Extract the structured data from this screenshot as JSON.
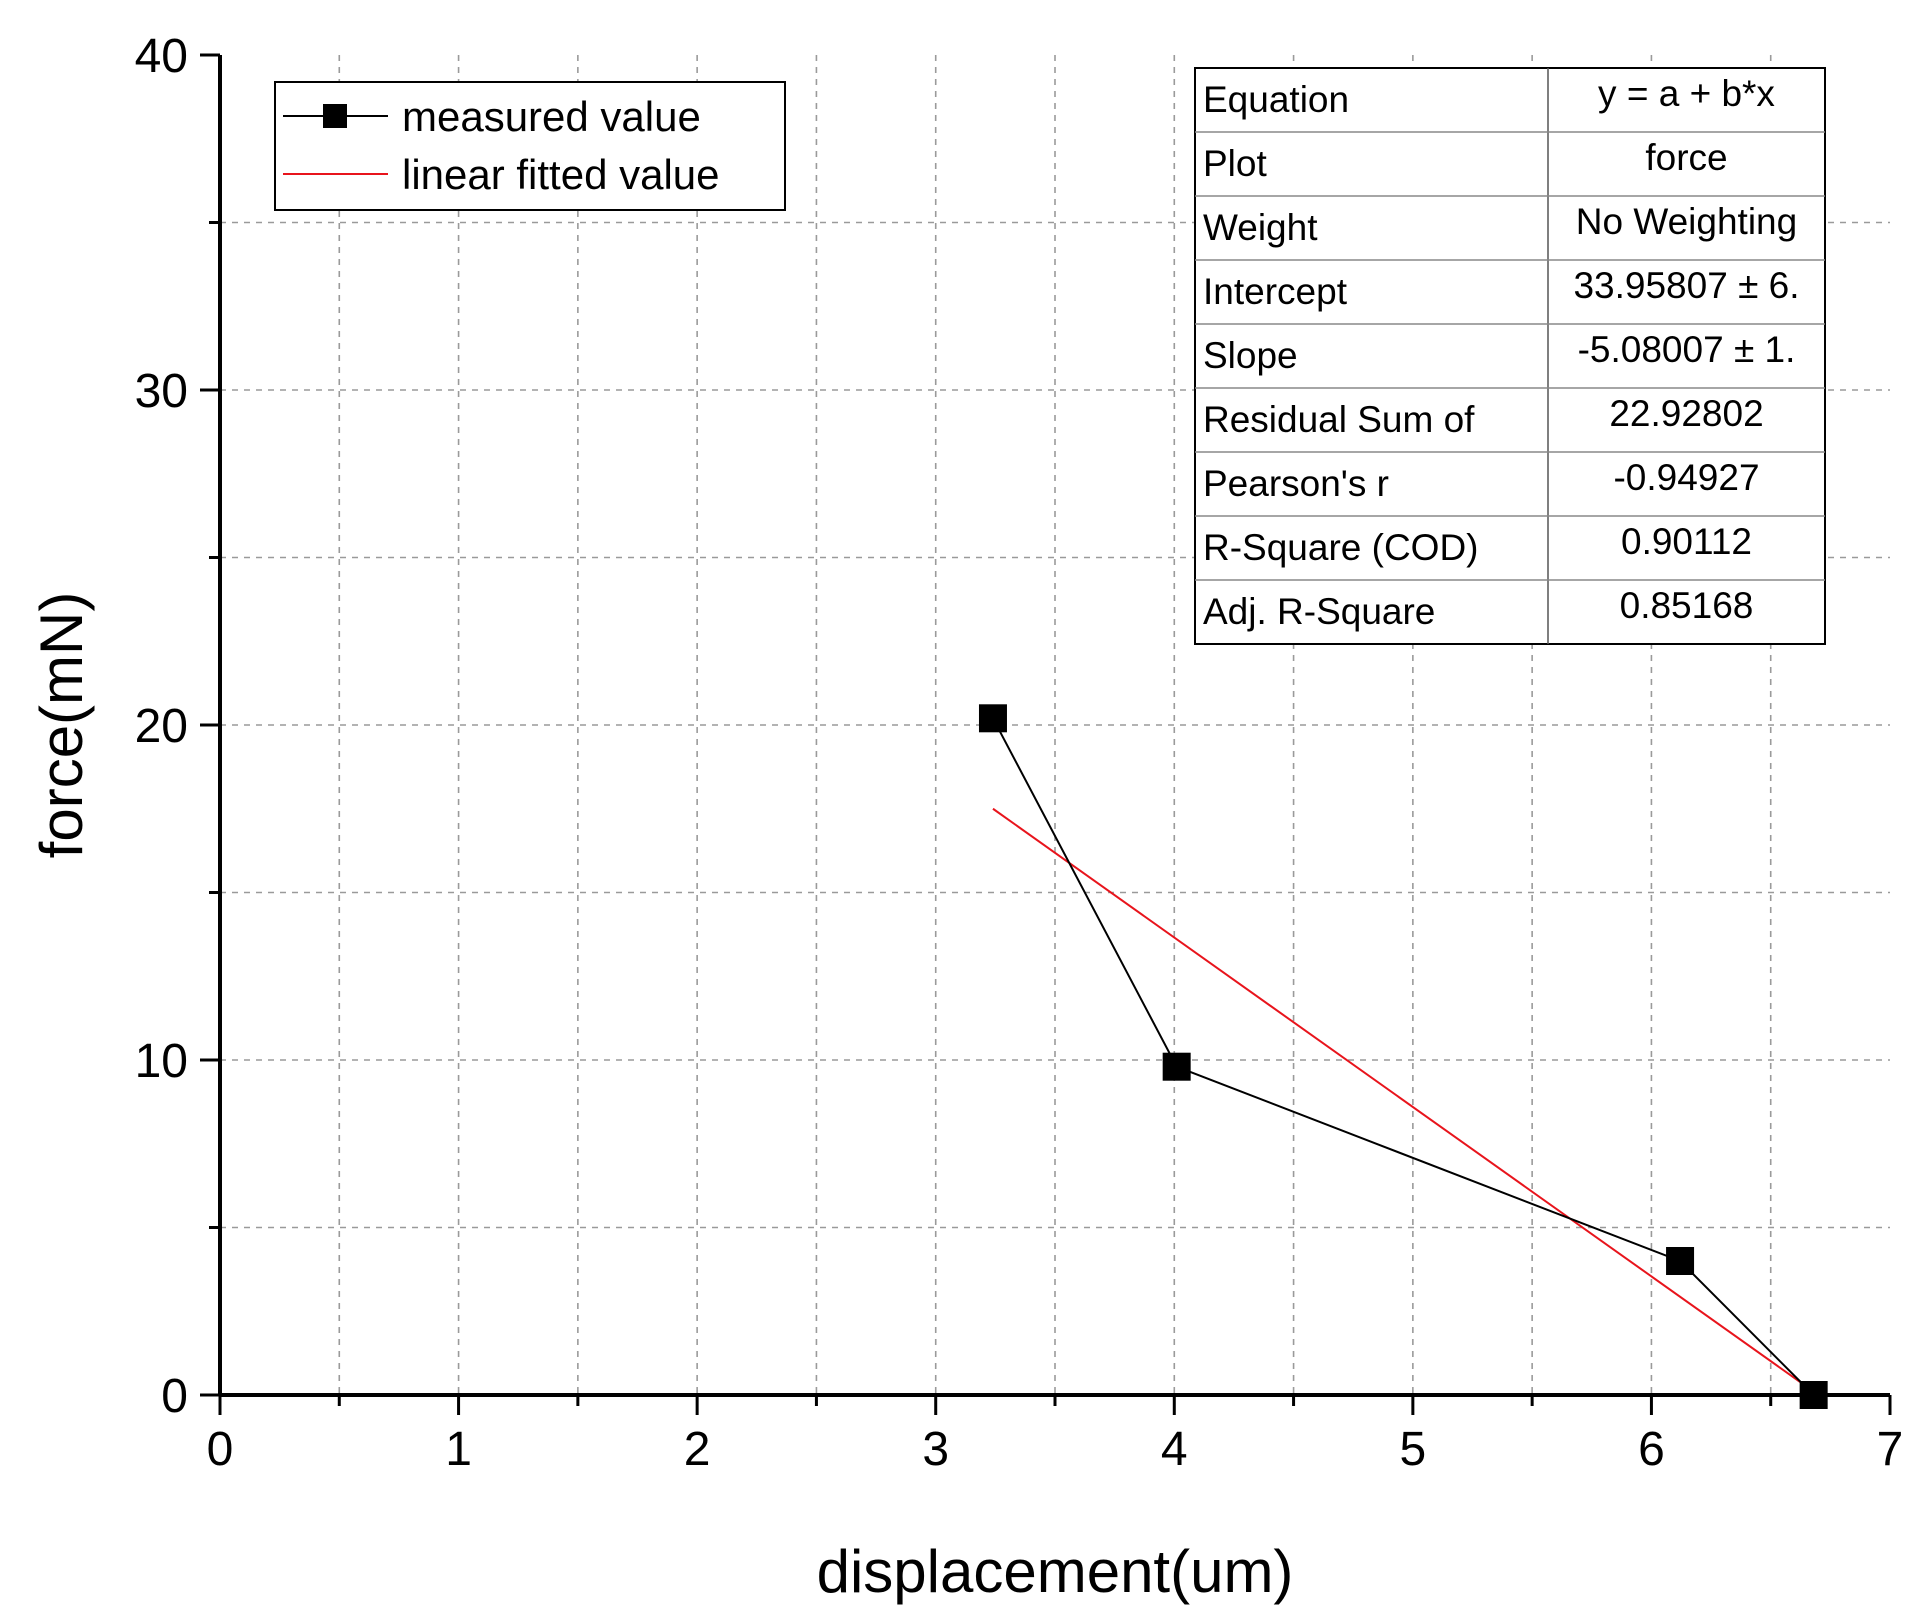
{
  "chart_data": {
    "type": "line",
    "xlabel": "displacement(um)",
    "ylabel": "force(mN)",
    "xlim": [
      0,
      7
    ],
    "ylim": [
      0,
      40
    ],
    "x_ticks": [
      0,
      1,
      2,
      3,
      4,
      5,
      6,
      7
    ],
    "y_ticks": [
      0,
      10,
      20,
      30,
      40
    ],
    "x_tick_labels": [
      "0",
      "1",
      "2",
      "3",
      "4",
      "5",
      "6",
      "7"
    ],
    "y_tick_labels": [
      "0",
      "10",
      "20",
      "30",
      "40"
    ],
    "grid": true,
    "legend_position": "top-left",
    "series": [
      {
        "name": "measured value",
        "kind": "line-with-square-markers",
        "color": "#000000",
        "x": [
          3.24,
          4.01,
          6.12,
          6.68
        ],
        "y": [
          20.2,
          9.8,
          4.0,
          0.0
        ]
      },
      {
        "name": "linear fitted value",
        "kind": "line",
        "color": "#e8141c",
        "x": [
          3.24,
          6.68
        ],
        "y": [
          17.5,
          0.1
        ]
      }
    ],
    "fit_table": {
      "rows": [
        {
          "label": "Equation",
          "value": "y = a + b*x"
        },
        {
          "label": "Plot",
          "value": "force"
        },
        {
          "label": "Weight",
          "value": "No Weighting"
        },
        {
          "label": "Intercept",
          "value": "33.95807 ± 6."
        },
        {
          "label": "Slope",
          "value": "-5.08007 ± 1."
        },
        {
          "label": "Residual Sum  of",
          "value": "22.92802"
        },
        {
          "label": "Pearson's r",
          "value": "-0.94927"
        },
        {
          "label": "R-Square (COD)",
          "value": "0.90112"
        },
        {
          "label": "Adj. R-Square",
          "value": "0.85168"
        }
      ]
    }
  }
}
